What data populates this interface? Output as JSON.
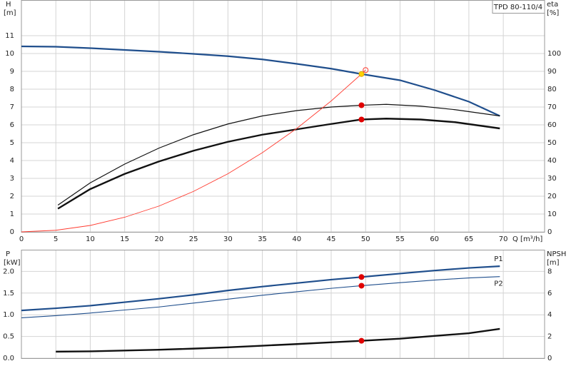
{
  "chart_data": [
    {
      "type": "line",
      "title": "TPD 80-110/4",
      "x_label": "Q [m³/h]",
      "y_label": "H",
      "y_unit": "[m]",
      "y2_label": "eta",
      "y2_unit": "[%]",
      "xlim": [
        0,
        76
      ],
      "xticks": [
        0,
        5,
        10,
        15,
        20,
        25,
        30,
        35,
        40,
        45,
        50,
        55,
        60,
        65,
        70
      ],
      "ylim": [
        0,
        13
      ],
      "yticks": [
        0,
        1,
        2,
        3,
        4,
        5,
        6,
        7,
        8,
        9,
        10,
        11
      ],
      "y2lim": [
        0,
        130
      ],
      "y2ticks": [
        0,
        10,
        20,
        30,
        40,
        50,
        60,
        70,
        80,
        90,
        100
      ],
      "grid": true,
      "series": [
        {
          "color": "#1f4e8c",
          "width": 2.2,
          "x": [
            0,
            5,
            10,
            15,
            20,
            25,
            30,
            35,
            40,
            45,
            49.4,
            55,
            60,
            65,
            69.5
          ],
          "values": [
            10.4,
            10.38,
            10.3,
            10.2,
            10.1,
            9.98,
            9.85,
            9.67,
            9.42,
            9.15,
            8.85,
            8.5,
            7.95,
            7.3,
            6.5
          ]
        },
        {
          "color": "#111111",
          "width": 1.2,
          "axis": "y2",
          "x": [
            5.3,
            10,
            15,
            20,
            25,
            30,
            35,
            40,
            45,
            49.4,
            53,
            58,
            63,
            69.5
          ],
          "values": [
            15,
            27.5,
            38,
            47,
            54.5,
            60.5,
            65,
            68,
            70,
            71,
            71.5,
            70.5,
            68.5,
            65
          ]
        },
        {
          "color": "#111111",
          "width": 2.4,
          "axis": "y2",
          "x": [
            5.3,
            10,
            15,
            20,
            25,
            30,
            35,
            40,
            45,
            49.4,
            53,
            58,
            63,
            69.5
          ],
          "values": [
            13,
            24,
            32.5,
            39.5,
            45.5,
            50.5,
            54.5,
            57.5,
            60.5,
            63,
            63.5,
            63,
            61.5,
            58
          ]
        },
        {
          "color": "#ff3b30",
          "width": 0.9,
          "x": [
            0,
            5,
            10,
            15,
            20,
            25,
            30,
            35,
            40,
            45,
            49.4,
            50
          ],
          "values": [
            0,
            0.09,
            0.36,
            0.82,
            1.45,
            2.27,
            3.26,
            4.44,
            5.8,
            7.34,
            8.85,
            9.07
          ]
        }
      ],
      "points": [
        {
          "x": 50,
          "y": 9.07,
          "color": "#ff3b30",
          "fill": "none"
        },
        {
          "x": 49.4,
          "y": 8.85,
          "color": "#e0a800",
          "fill": "#ffd200"
        },
        {
          "x": 49.4,
          "y": 71,
          "color": "#e00000",
          "fill": "#e00000",
          "axis": "y2"
        },
        {
          "x": 49.4,
          "y": 63,
          "color": "#e00000",
          "fill": "#e00000",
          "axis": "y2"
        }
      ]
    },
    {
      "type": "line",
      "y_label": "P",
      "y_unit": "[kW]",
      "y2_label": "NPSH",
      "y2_unit": "[m]",
      "xlim": [
        0,
        76
      ],
      "ylim": [
        0,
        2.5
      ],
      "yticks": [
        {
          "value": 0,
          "label": "0.0"
        },
        0.5,
        {
          "value": 1,
          "label": "1.0"
        },
        1.5,
        {
          "value": 2,
          "label": "2.0"
        }
      ],
      "y2lim": [
        0,
        10
      ],
      "y2ticks": [
        0,
        2,
        4,
        6,
        8
      ],
      "grid": true,
      "series": [
        {
          "name": "P1",
          "color": "#1f4e8c",
          "width": 2.2,
          "x": [
            0,
            5,
            10,
            15,
            20,
            25,
            30,
            35,
            40,
            45,
            49.4,
            55,
            60,
            65,
            69.5
          ],
          "values": [
            1.1,
            1.15,
            1.21,
            1.29,
            1.37,
            1.46,
            1.56,
            1.65,
            1.73,
            1.81,
            1.87,
            1.95,
            2.02,
            2.08,
            2.12
          ]
        },
        {
          "name": "P2",
          "color": "#1f4e8c",
          "width": 1.1,
          "x": [
            0,
            5,
            10,
            15,
            20,
            25,
            30,
            35,
            40,
            45,
            49.4,
            55,
            60,
            65,
            69.5
          ],
          "values": [
            0.93,
            0.98,
            1.04,
            1.11,
            1.18,
            1.27,
            1.36,
            1.45,
            1.53,
            1.61,
            1.67,
            1.74,
            1.8,
            1.85,
            1.88
          ]
        },
        {
          "color": "#111111",
          "width": 2.4,
          "axis": "y2",
          "x": [
            5,
            10,
            15,
            20,
            25,
            30,
            35,
            40,
            45,
            49.4,
            55,
            60,
            65,
            69.5
          ],
          "values": [
            0.6,
            0.63,
            0.7,
            0.78,
            0.88,
            1.0,
            1.15,
            1.3,
            1.46,
            1.6,
            1.8,
            2.05,
            2.3,
            2.7
          ]
        }
      ],
      "points": [
        {
          "x": 49.4,
          "y": 1.87,
          "color": "#e00000",
          "fill": "#e00000"
        },
        {
          "x": 49.4,
          "y": 1.67,
          "color": "#e00000",
          "fill": "#e00000"
        },
        {
          "x": 49.4,
          "y": 1.6,
          "color": "#e00000",
          "fill": "#e00000",
          "axis": "y2"
        }
      ]
    }
  ]
}
